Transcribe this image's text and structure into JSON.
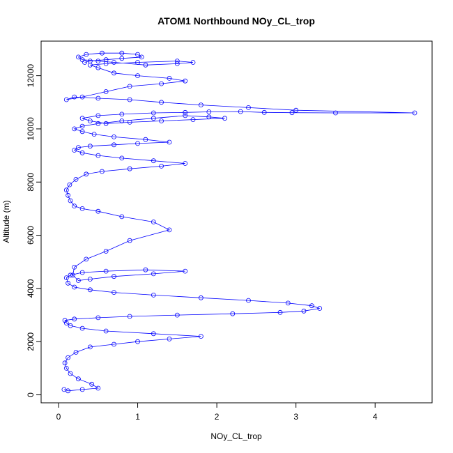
{
  "chart_data": {
    "type": "scatter",
    "title": "ATOM1 Northbound NOy_CL_trop",
    "xlabel": "NOy_CL_trop",
    "ylabel": "Altitude (m)",
    "xlim": [
      -0.22,
      4.72
    ],
    "ylim": [
      -300,
      13300
    ],
    "xticks": [
      0,
      1,
      2,
      3,
      4
    ],
    "xtick_labels": [
      "0",
      "1",
      "2",
      "3",
      "4"
    ],
    "yticks": [
      0,
      2000,
      4000,
      6000,
      8000,
      10000,
      12000
    ],
    "ytick_labels": [
      "0",
      "2000",
      "4000",
      "6000",
      "8000",
      "10000",
      "12000"
    ],
    "grid": false,
    "legend": "none",
    "marker": "open-circle",
    "connected": true,
    "color": "#0000ff",
    "series": [
      {
        "x": [
          0.07,
          0.12,
          0.3,
          0.5,
          0.42,
          0.25,
          0.15,
          0.1,
          0.08,
          0.12,
          0.22,
          0.4,
          0.7,
          1.0,
          1.4,
          1.8,
          1.2,
          0.6,
          0.3,
          0.15,
          0.1,
          0.08,
          0.2,
          0.5,
          0.9,
          1.5,
          2.2,
          2.8,
          3.1,
          3.3,
          3.2,
          2.9,
          2.4,
          1.8,
          1.2,
          0.7,
          0.4,
          0.2,
          0.12,
          0.1,
          0.15,
          0.3,
          0.6,
          1.1,
          1.6,
          1.2,
          0.7,
          0.4,
          0.25,
          0.18,
          0.2,
          0.35,
          0.6,
          0.9,
          1.4,
          1.2,
          0.8,
          0.5,
          0.3,
          0.2,
          0.15,
          0.12,
          0.1,
          0.14,
          0.22,
          0.35,
          0.55,
          0.9,
          1.3,
          1.6,
          1.2,
          0.8,
          0.5,
          0.3,
          0.2,
          0.25,
          0.4,
          0.7,
          1.0,
          1.4,
          1.1,
          0.7,
          0.45,
          0.3,
          0.2,
          0.3,
          0.5,
          0.8,
          1.2,
          1.6,
          1.9,
          2.1,
          1.7,
          1.3,
          0.9,
          0.6,
          0.4,
          0.3,
          0.5,
          0.8,
          1.2,
          1.6,
          1.9,
          2.3,
          2.6,
          2.95,
          3.5,
          4.5,
          3.0,
          2.4,
          1.8,
          1.3,
          0.9,
          0.5,
          0.2,
          0.1,
          0.3,
          0.6,
          0.9,
          1.3,
          1.6,
          1.4,
          1.0,
          0.7,
          0.5,
          0.4,
          0.6,
          1.0,
          1.5,
          1.7,
          1.5,
          1.1,
          0.7,
          0.5,
          0.3,
          0.25,
          0.35,
          0.55,
          0.8,
          1.0,
          1.05,
          0.8,
          0.6,
          0.4,
          0.33
        ],
        "y": [
          200,
          150,
          200,
          250,
          400,
          600,
          800,
          1000,
          1200,
          1400,
          1600,
          1800,
          1900,
          2000,
          2100,
          2200,
          2300,
          2400,
          2500,
          2600,
          2700,
          2800,
          2850,
          2900,
          2950,
          3000,
          3050,
          3100,
          3150,
          3250,
          3350,
          3450,
          3550,
          3650,
          3750,
          3850,
          3950,
          4050,
          4200,
          4400,
          4500,
          4600,
          4650,
          4700,
          4650,
          4550,
          4450,
          4350,
          4300,
          4500,
          4800,
          5100,
          5400,
          5800,
          6200,
          6500,
          6700,
          6900,
          7000,
          7100,
          7300,
          7500,
          7700,
          7900,
          8100,
          8300,
          8400,
          8500,
          8600,
          8700,
          8800,
          8900,
          9000,
          9100,
          9200,
          9300,
          9350,
          9400,
          9450,
          9500,
          9600,
          9700,
          9800,
          9900,
          10000,
          10100,
          10200,
          10300,
          10400,
          10500,
          10450,
          10400,
          10350,
          10300,
          10250,
          10200,
          10300,
          10400,
          10500,
          10550,
          10600,
          10620,
          10640,
          10650,
          10620,
          10610,
          10600,
          10600,
          10700,
          10800,
          10900,
          11000,
          11100,
          11150,
          11200,
          11100,
          11200,
          11400,
          11600,
          11700,
          11800,
          11900,
          12000,
          12100,
          12300,
          12400,
          12450,
          12500,
          12550,
          12500,
          12450,
          12400,
          12500,
          12550,
          12600,
          12700,
          12800,
          12850,
          12850,
          12800,
          12700,
          12650,
          12600,
          12550,
          12500
        ]
      }
    ]
  }
}
